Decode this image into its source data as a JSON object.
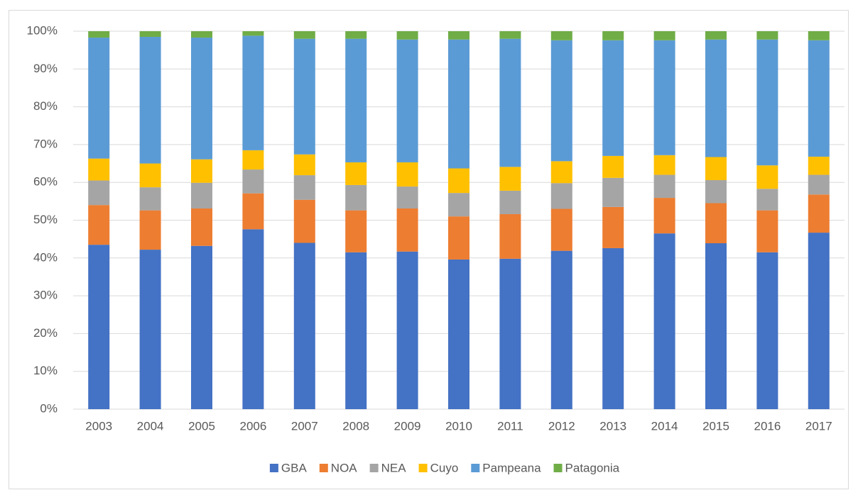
{
  "chart_data": {
    "type": "stacked_bar",
    "categories": [
      "2003",
      "2004",
      "2005",
      "2006",
      "2007",
      "2008",
      "2009",
      "2010",
      "2011",
      "2012",
      "2013",
      "2014",
      "2015",
      "2016",
      "2017"
    ],
    "series": [
      {
        "name": "GBA",
        "color": "#4472c4",
        "values": [
          43.5,
          42.2,
          43.2,
          47.6,
          44.0,
          41.5,
          41.7,
          39.6,
          39.8,
          41.9,
          42.6,
          46.5,
          43.9,
          41.5,
          46.7
        ]
      },
      {
        "name": "NOA",
        "color": "#ed7d31",
        "values": [
          10.5,
          10.4,
          9.9,
          9.5,
          11.4,
          11.1,
          11.4,
          11.4,
          11.8,
          11.1,
          10.9,
          9.4,
          10.6,
          11.1,
          10.1
        ]
      },
      {
        "name": "NEA",
        "color": "#a5a5a5",
        "values": [
          6.5,
          6.1,
          6.8,
          6.3,
          6.5,
          6.7,
          5.8,
          6.2,
          6.2,
          6.8,
          7.7,
          6.1,
          6.1,
          5.7,
          5.2
        ]
      },
      {
        "name": "Cuyo",
        "color": "#ffc000",
        "values": [
          5.8,
          6.3,
          6.2,
          5.1,
          5.5,
          6.0,
          6.4,
          6.5,
          6.3,
          5.8,
          5.8,
          5.2,
          6.1,
          6.2,
          4.8
        ]
      },
      {
        "name": "Pampeana",
        "color": "#5b9bd5",
        "values": [
          32.0,
          33.5,
          32.2,
          30.3,
          30.6,
          32.7,
          32.5,
          34.1,
          33.9,
          32.0,
          30.6,
          30.4,
          31.1,
          33.3,
          30.8
        ]
      },
      {
        "name": "Patagonia",
        "color": "#70ad47",
        "values": [
          1.7,
          1.5,
          1.7,
          1.2,
          2.0,
          2.0,
          2.2,
          2.2,
          2.0,
          2.4,
          2.4,
          2.4,
          2.2,
          2.2,
          2.4
        ]
      }
    ],
    "ylim": [
      0,
      100
    ],
    "yticks": [
      {
        "value": 0,
        "label": "0%"
      },
      {
        "value": 10,
        "label": "10%"
      },
      {
        "value": 20,
        "label": "20%"
      },
      {
        "value": 30,
        "label": "30%"
      },
      {
        "value": 40,
        "label": "40%"
      },
      {
        "value": 50,
        "label": "50%"
      },
      {
        "value": 60,
        "label": "60%"
      },
      {
        "value": 70,
        "label": "70%"
      },
      {
        "value": 80,
        "label": "80%"
      },
      {
        "value": 90,
        "label": "90%"
      },
      {
        "value": 100,
        "label": "100%"
      }
    ],
    "grid": true,
    "legend": "bottom"
  }
}
